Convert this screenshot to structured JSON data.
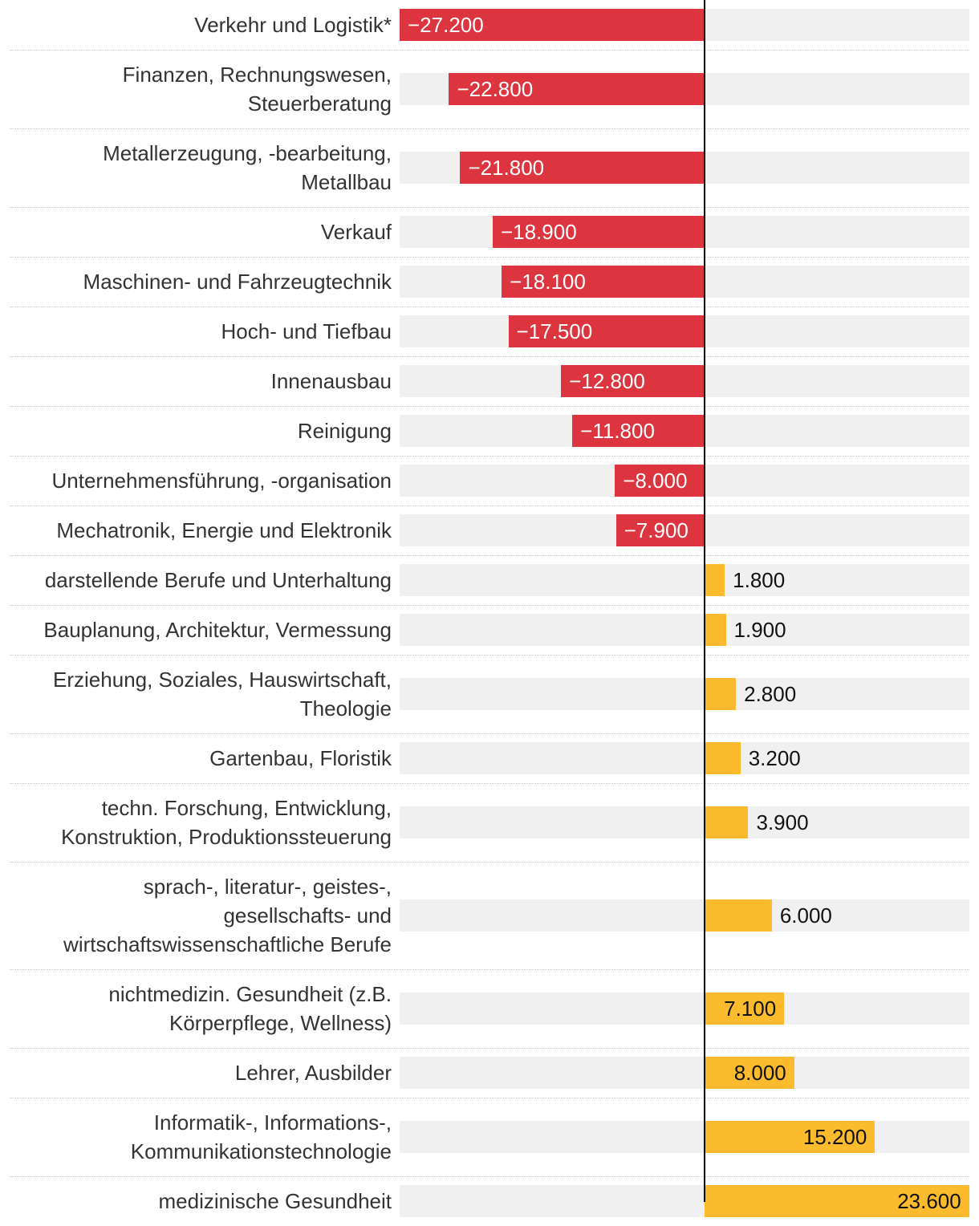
{
  "chart_data": {
    "type": "bar",
    "orientation": "horizontal",
    "title": "",
    "xlabel": "",
    "ylabel": "",
    "xlim": [
      -27200,
      23600
    ],
    "colors": {
      "negative": "#dc3540",
      "positive": "#fcbb2c",
      "track": "#f0f0f0",
      "zero_line": "#000000"
    },
    "categories": [
      [
        "Verkehr und Logistik*"
      ],
      [
        "Finanzen, Rechnungswesen,",
        "Steuerberatung"
      ],
      [
        "Metallerzeugung, -bearbeitung,",
        "Metallbau"
      ],
      [
        "Verkauf"
      ],
      [
        "Maschinen- und Fahrzeugtechnik"
      ],
      [
        "Hoch- und Tiefbau"
      ],
      [
        "Innenausbau"
      ],
      [
        "Reinigung"
      ],
      [
        "Unternehmensführung, -organisation"
      ],
      [
        "Mechatronik, Energie und Elektronik"
      ],
      [
        "darstellende Berufe und Unterhaltung"
      ],
      [
        "Bauplanung, Architektur, Vermessung"
      ],
      [
        "Erziehung, Soziales, Hauswirtschaft,",
        "Theologie"
      ],
      [
        "Gartenbau, Floristik"
      ],
      [
        "techn. Forschung, Entwicklung,",
        "Konstruktion, Produktionssteuerung"
      ],
      [
        "sprach-, literatur-, geistes-,",
        "gesellschafts- und",
        "wirtschaftswissenschaftliche Berufe"
      ],
      [
        "nichtmedizin. Gesundheit (z.B.",
        "Körperpflege, Wellness)"
      ],
      [
        "Lehrer, Ausbilder"
      ],
      [
        "Informatik-, Informations-,",
        "Kommunikationstechnologie"
      ],
      [
        "medizinische Gesundheit"
      ]
    ],
    "values": [
      -27200,
      -22800,
      -21800,
      -18900,
      -18100,
      -17500,
      -12800,
      -11800,
      -8000,
      -7900,
      1800,
      1900,
      2800,
      3200,
      3900,
      6000,
      7100,
      8000,
      15200,
      23600
    ],
    "value_labels": [
      "−27.200",
      "−22.800",
      "−21.800",
      "−18.900",
      "−18.100",
      "−17.500",
      "−12.800",
      "−11.800",
      "−8.000",
      "−7.900",
      "1.800",
      "1.900",
      "2.800",
      "3.200",
      "3.900",
      "6.000",
      "7.100",
      "8.000",
      "15.200",
      "23.600"
    ]
  }
}
